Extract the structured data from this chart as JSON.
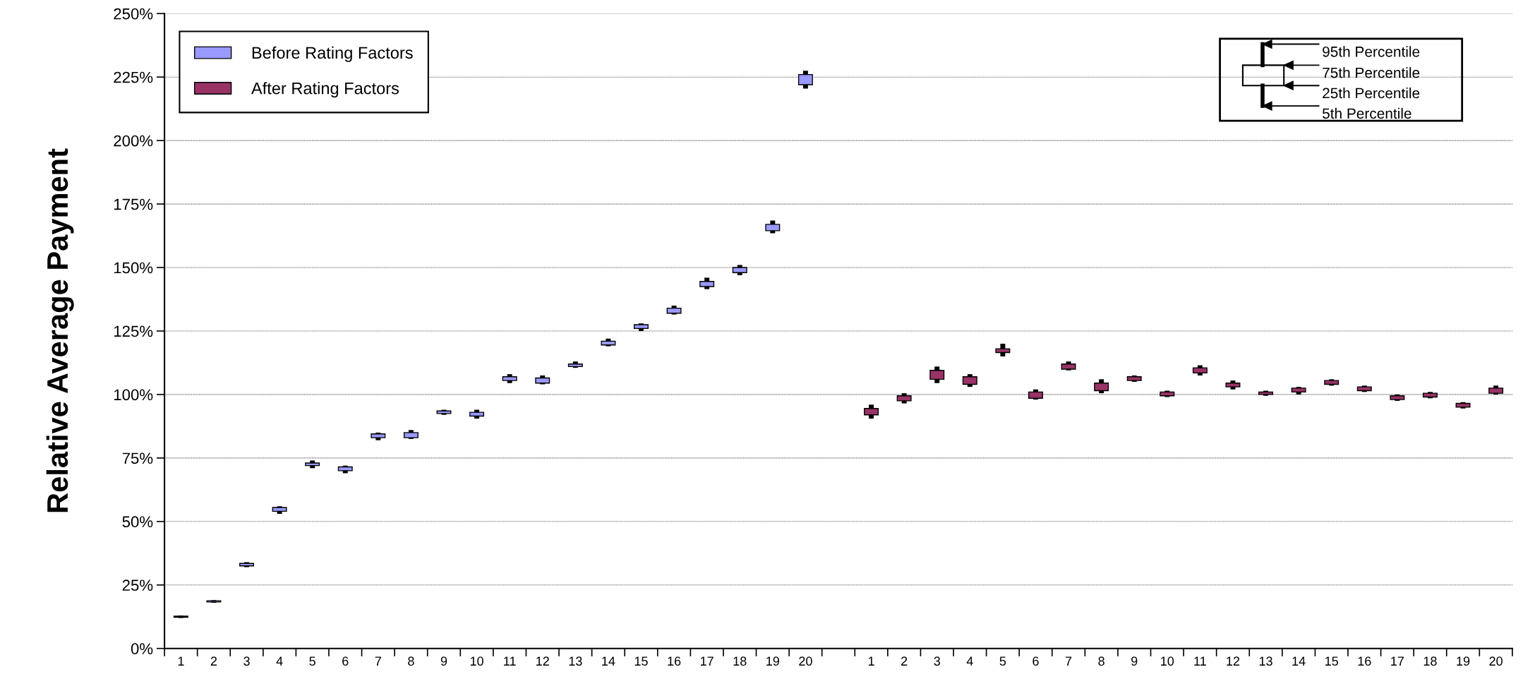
{
  "chart_data": {
    "type": "box",
    "ylabel": "Relative Average Payment",
    "categories": [
      "1",
      "2",
      "3",
      "4",
      "5",
      "6",
      "7",
      "8",
      "9",
      "10",
      "11",
      "12",
      "13",
      "14",
      "15",
      "16",
      "17",
      "18",
      "19",
      "20",
      null,
      "1",
      "2",
      "3",
      "4",
      "5",
      "6",
      "7",
      "8",
      "9",
      "10",
      "11",
      "12",
      "13",
      "14",
      "15",
      "16",
      "17",
      "18",
      "19",
      "20"
    ],
    "series": [
      {
        "name": "Before Rating Factors",
        "color": "#9999ff",
        "boxes": [
          {
            "low": 12,
            "q1": 12.3,
            "q3": 12.7,
            "high": 13
          },
          {
            "low": 18,
            "q1": 18.3,
            "q3": 18.8,
            "high": 19
          },
          {
            "low": 32,
            "q1": 32.5,
            "q3": 33.5,
            "high": 34
          },
          {
            "low": 53,
            "q1": 54,
            "q3": 55.5,
            "high": 56
          },
          {
            "low": 71,
            "q1": 72,
            "q3": 73,
            "high": 74
          },
          {
            "low": 69,
            "q1": 70,
            "q3": 71.5,
            "high": 72
          },
          {
            "low": 82,
            "q1": 83,
            "q3": 84.5,
            "high": 85
          },
          {
            "low": 82.5,
            "q1": 83,
            "q3": 85,
            "high": 86
          },
          {
            "low": 92,
            "q1": 92.5,
            "q3": 93.5,
            "high": 94
          },
          {
            "low": 90.5,
            "q1": 91.5,
            "q3": 93,
            "high": 94
          },
          {
            "low": 104.5,
            "q1": 105.5,
            "q3": 107,
            "high": 108
          },
          {
            "low": 104,
            "q1": 104.5,
            "q3": 106.5,
            "high": 107.5
          },
          {
            "low": 110.5,
            "q1": 111,
            "q3": 112,
            "high": 113
          },
          {
            "low": 119,
            "q1": 119.5,
            "q3": 121,
            "high": 122
          },
          {
            "low": 125,
            "q1": 126,
            "q3": 127.5,
            "high": 128
          },
          {
            "low": 131.5,
            "q1": 132,
            "q3": 134,
            "high": 135
          },
          {
            "low": 141.5,
            "q1": 142.5,
            "q3": 144.5,
            "high": 146
          },
          {
            "low": 147,
            "q1": 148,
            "q3": 150,
            "high": 151
          },
          {
            "low": 163.5,
            "q1": 164.5,
            "q3": 167,
            "high": 168.5
          },
          {
            "low": 220.5,
            "q1": 222,
            "q3": 226,
            "high": 227.5
          },
          null,
          null,
          null,
          null,
          null,
          null,
          null,
          null,
          null,
          null,
          null,
          null,
          null,
          null,
          null,
          null,
          null,
          null,
          null,
          null,
          null
        ]
      },
      {
        "name": "After Rating Factors",
        "color": "#993366",
        "boxes": [
          null,
          null,
          null,
          null,
          null,
          null,
          null,
          null,
          null,
          null,
          null,
          null,
          null,
          null,
          null,
          null,
          null,
          null,
          null,
          null,
          null,
          {
            "low": 90.5,
            "q1": 92,
            "q3": 94.5,
            "high": 96
          },
          {
            "low": 96.5,
            "q1": 97.5,
            "q3": 99.5,
            "high": 100.5
          },
          {
            "low": 104.5,
            "q1": 106,
            "q3": 109.5,
            "high": 111
          },
          {
            "low": 103,
            "q1": 104,
            "q3": 107,
            "high": 108
          },
          {
            "low": 115,
            "q1": 116.5,
            "q3": 118,
            "high": 120
          },
          {
            "low": 98,
            "q1": 98.5,
            "q3": 101,
            "high": 102
          },
          {
            "low": 109.5,
            "q1": 110,
            "q3": 112,
            "high": 113
          },
          {
            "low": 100.5,
            "q1": 101.5,
            "q3": 104.5,
            "high": 106
          },
          {
            "low": 105,
            "q1": 105.5,
            "q3": 107,
            "high": 107.5
          },
          {
            "low": 99,
            "q1": 99.5,
            "q3": 101,
            "high": 101.5
          },
          {
            "low": 107.5,
            "q1": 108.5,
            "q3": 110.5,
            "high": 111.5
          },
          {
            "low": 102,
            "q1": 103,
            "q3": 104.5,
            "high": 105.5
          },
          {
            "low": 99.5,
            "q1": 100,
            "q3": 101,
            "high": 101.5
          },
          {
            "low": 100,
            "q1": 101,
            "q3": 102.5,
            "high": 103
          },
          {
            "low": 103.5,
            "q1": 104,
            "q3": 105.5,
            "high": 106
          },
          {
            "low": 101,
            "q1": 101.5,
            "q3": 103,
            "high": 103.5
          },
          {
            "low": 97.5,
            "q1": 98,
            "q3": 99.5,
            "high": 100
          },
          {
            "low": 98.5,
            "q1": 99,
            "q3": 100.5,
            "high": 101
          },
          {
            "low": 94.5,
            "q1": 95,
            "q3": 96.5,
            "high": 97
          },
          {
            "low": 100,
            "q1": 100.5,
            "q3": 102.5,
            "high": 103.5
          }
        ]
      }
    ],
    "ylim": [
      0,
      250
    ],
    "yticks": [
      {
        "value": 0,
        "label": "0%"
      },
      {
        "value": 25,
        "label": "25%"
      },
      {
        "value": 50,
        "label": "50%"
      },
      {
        "value": 75,
        "label": "75%"
      },
      {
        "value": 100,
        "label": "100%"
      },
      {
        "value": 125,
        "label": "125%"
      },
      {
        "value": 150,
        "label": "150%"
      },
      {
        "value": 175,
        "label": "175%"
      },
      {
        "value": 200,
        "label": "200%"
      },
      {
        "value": 225,
        "label": "225%"
      },
      {
        "value": 250,
        "label": "250%"
      }
    ],
    "grid": "y",
    "legend": "top left",
    "annotations": [
      "95th Percentile",
      "75th Percentile",
      "25th Percentile",
      "5th Percentile"
    ]
  }
}
